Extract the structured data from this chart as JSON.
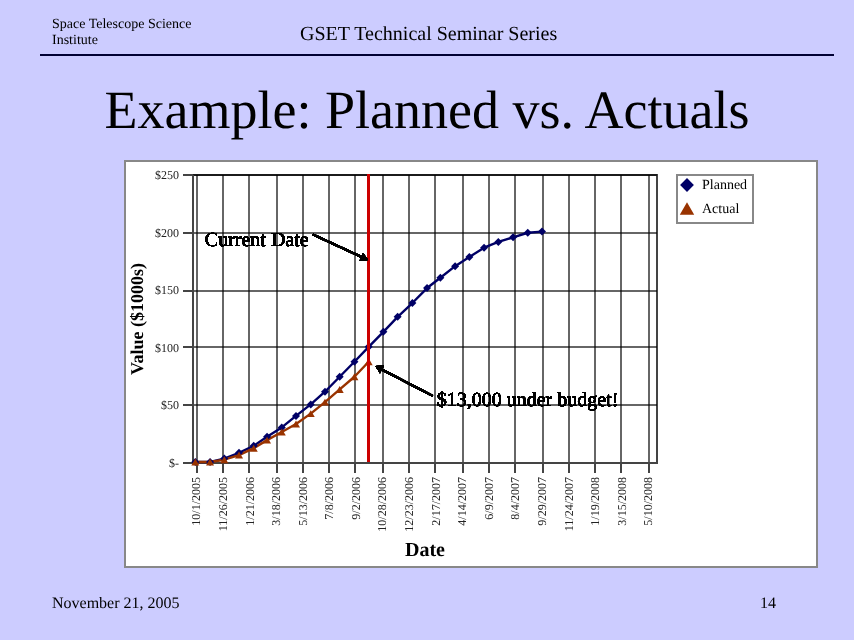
{
  "chart_data": {
    "type": "line",
    "title": "Example: Planned vs. Actuals",
    "xlabel": "Date",
    "ylabel": "Value ($1000s)",
    "annotations": [
      "Space Telescope Science Institute",
      "GSET Technical Seminar Series",
      "November 21, 2005",
      "14",
      {
        "text": "Current Date",
        "x": "2006-10-01",
        "y": 175
      },
      {
        "text": "$13,000 under budget!",
        "x": "2006-10-01",
        "y": 87
      }
    ],
    "x": [
      "2005-10-01",
      "2005-11-01",
      "2005-12-01",
      "2006-01-01",
      "2006-02-01",
      "2006-03-01",
      "2006-04-01",
      "2006-05-01",
      "2006-06-01",
      "2006-07-01",
      "2006-08-01",
      "2006-09-01",
      "2006-10-01",
      "2006-11-01",
      "2006-12-01",
      "2007-01-01",
      "2007-02-01",
      "2007-03-01",
      "2007-04-01",
      "2007-05-01",
      "2007-06-01",
      "2007-07-01",
      "2007-08-01",
      "2007-09-01",
      "2007-10-01"
    ],
    "series": [
      {
        "name": "Planned",
        "color": "#000066",
        "marker": "diamond",
        "values": [
          0,
          0,
          3,
          8,
          14,
          22,
          30,
          40,
          50,
          61,
          74,
          87,
          100,
          113,
          126,
          138,
          151,
          160,
          170,
          178,
          186,
          191,
          195,
          199,
          200
        ]
      },
      {
        "name": "Actual",
        "color": "#993300",
        "marker": "triangle",
        "values": [
          0,
          0,
          2,
          6,
          12,
          19,
          26,
          33,
          42,
          52,
          63,
          74,
          87,
          null,
          null,
          null,
          null,
          null,
          null,
          null,
          null,
          null,
          null,
          null,
          null
        ]
      }
    ],
    "xlim": [
      "2005-09-24",
      "2008-05-28"
    ],
    "xticks": [
      {
        "value": "2005-10-01",
        "label": "10/1/2005"
      },
      {
        "value": "2005-11-26",
        "label": "11/26/2005"
      },
      {
        "value": "2006-01-21",
        "label": "1/21/2006"
      },
      {
        "value": "2006-03-18",
        "label": "3/18/2006"
      },
      {
        "value": "2006-05-13",
        "label": "5/13/2006"
      },
      {
        "value": "2006-07-08",
        "label": "7/8/2006"
      },
      {
        "value": "2006-09-02",
        "label": "9/2/2006"
      },
      {
        "value": "2006-10-28",
        "label": "10/28/2006"
      },
      {
        "value": "2006-12-23",
        "label": "12/23/2006"
      },
      {
        "value": "2007-02-17",
        "label": "2/17/2007"
      },
      {
        "value": "2007-04-14",
        "label": "4/14/2007"
      },
      {
        "value": "2007-06-09",
        "label": "6/9/2007"
      },
      {
        "value": "2007-08-04",
        "label": "8/4/2007"
      },
      {
        "value": "2007-09-29",
        "label": "9/29/2007"
      },
      {
        "value": "2007-11-24",
        "label": "11/24/2007"
      },
      {
        "value": "2008-01-19",
        "label": "1/19/2008"
      },
      {
        "value": "2008-03-15",
        "label": "3/15/2008"
      },
      {
        "value": "2008-05-10",
        "label": "5/10/2008"
      }
    ],
    "ylim": [
      0,
      250
    ],
    "yticks": [
      {
        "value": 0,
        "label": "$-"
      },
      {
        "value": 50,
        "label": "$50"
      },
      {
        "value": 100,
        "label": "$100"
      },
      {
        "value": 150,
        "label": "$150"
      },
      {
        "value": 200,
        "label": "$200"
      },
      {
        "value": 250,
        "label": "$250"
      }
    ],
    "ref_lines": [
      {
        "axis": "x",
        "value": "2006-10-01",
        "color": "#cc0000"
      }
    ],
    "grid": true,
    "legend": "right"
  }
}
